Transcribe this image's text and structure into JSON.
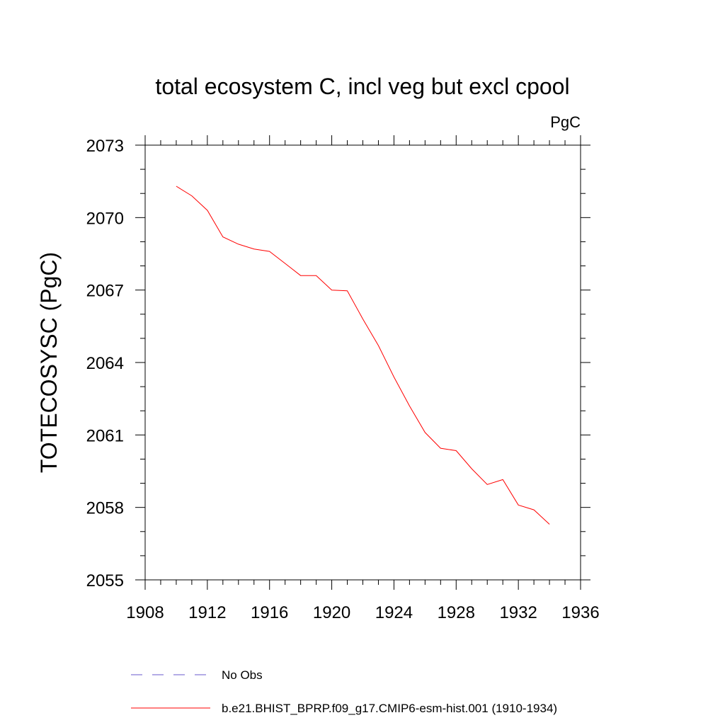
{
  "chart_data": {
    "type": "line",
    "title": "total ecosystem C, incl veg but excl cpool",
    "units": "PgC",
    "ylabel": "TOTECOSYSC  (PgC)",
    "xlabel": "",
    "xlim": [
      1908,
      1936
    ],
    "ylim": [
      2055,
      2073
    ],
    "xticks": [
      1908,
      1912,
      1916,
      1920,
      1924,
      1928,
      1932,
      1936
    ],
    "yticks": [
      2055,
      2058,
      2061,
      2064,
      2067,
      2070,
      2073
    ],
    "grid": false,
    "legend_position": "bottom",
    "series": [
      {
        "name": "No Obs",
        "color": "#6a5acd",
        "dash": "dashed",
        "x": [],
        "y": []
      },
      {
        "name": "b.e21.BHIST_BPRP.f09_g17.CMIP6-esm-hist.001 (1910-1934)",
        "color": "#ff0000",
        "dash": "solid",
        "x": [
          1910,
          1911,
          1912,
          1913,
          1914,
          1915,
          1916,
          1917,
          1918,
          1919,
          1920,
          1921,
          1922,
          1923,
          1924,
          1925,
          1926,
          1927,
          1928,
          1929,
          1930,
          1931,
          1932,
          1933,
          1934
        ],
        "y": [
          2071.3,
          2070.9,
          2070.3,
          2069.2,
          2068.9,
          2068.7,
          2068.6,
          2068.1,
          2067.6,
          2067.6,
          2067.0,
          2066.97,
          2065.8,
          2064.7,
          2063.4,
          2062.2,
          2061.1,
          2060.45,
          2060.35,
          2059.6,
          2058.95,
          2059.15,
          2058.1,
          2057.9,
          2057.3
        ]
      }
    ]
  }
}
